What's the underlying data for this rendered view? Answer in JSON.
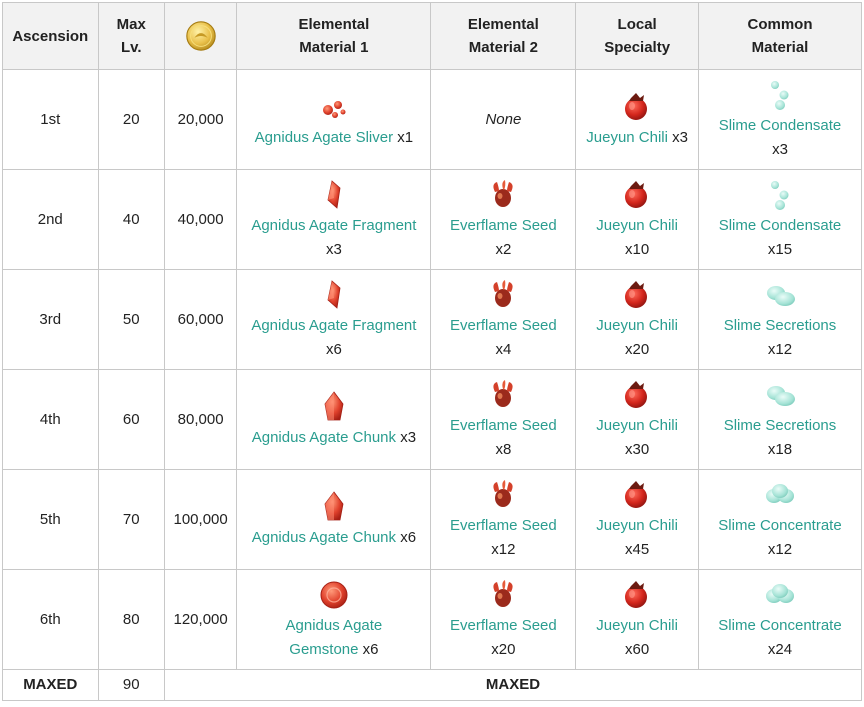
{
  "headers": {
    "ascension": "Ascension",
    "max_lv_1": "Max",
    "max_lv_2": "Lv.",
    "mora_icon": "mora-coin-icon",
    "elem1_1": "Elemental",
    "elem1_2": "Material 1",
    "elem2_1": "Elemental",
    "elem2_2": "Material 2",
    "local_1": "Local",
    "local_2": "Specialty",
    "common_1": "Common",
    "common_2": "Material"
  },
  "rows": [
    {
      "ascension": "1st",
      "max_lv": "20",
      "mora": "20,000",
      "elem1": {
        "icon": "agate-sliver-icon",
        "name": "Agnidus Agate Sliver",
        "qty": "x1",
        "inline": true
      },
      "elem2": {
        "none": "None"
      },
      "local": {
        "icon": "jueyun-chili-icon",
        "name": "Jueyun Chili",
        "qty": "x3",
        "inline": true
      },
      "common": {
        "icon": "slime-condensate-icon",
        "name": "Slime Condensate",
        "qty": "x3"
      }
    },
    {
      "ascension": "2nd",
      "max_lv": "40",
      "mora": "40,000",
      "elem1": {
        "icon": "agate-fragment-icon",
        "name": "Agnidus Agate Fragment",
        "qty": "x3"
      },
      "elem2": {
        "icon": "everflame-seed-icon",
        "name": "Everflame Seed",
        "qty": "x2"
      },
      "local": {
        "icon": "jueyun-chili-icon",
        "name": "Jueyun Chili",
        "qty": "x10"
      },
      "common": {
        "icon": "slime-condensate-icon",
        "name": "Slime Condensate",
        "qty": "x15"
      }
    },
    {
      "ascension": "3rd",
      "max_lv": "50",
      "mora": "60,000",
      "elem1": {
        "icon": "agate-fragment-icon",
        "name": "Agnidus Agate Fragment",
        "qty": "x6"
      },
      "elem2": {
        "icon": "everflame-seed-icon",
        "name": "Everflame Seed",
        "qty": "x4"
      },
      "local": {
        "icon": "jueyun-chili-icon",
        "name": "Jueyun Chili",
        "qty": "x20"
      },
      "common": {
        "icon": "slime-secretions-icon",
        "name": "Slime Secretions",
        "qty": "x12"
      }
    },
    {
      "ascension": "4th",
      "max_lv": "60",
      "mora": "80,000",
      "elem1": {
        "icon": "agate-chunk-icon",
        "name": "Agnidus Agate Chunk",
        "qty": "x3",
        "inline": true
      },
      "elem2": {
        "icon": "everflame-seed-icon",
        "name": "Everflame Seed",
        "qty": "x8"
      },
      "local": {
        "icon": "jueyun-chili-icon",
        "name": "Jueyun Chili",
        "qty": "x30"
      },
      "common": {
        "icon": "slime-secretions-icon",
        "name": "Slime Secretions",
        "qty": "x18"
      }
    },
    {
      "ascension": "5th",
      "max_lv": "70",
      "mora": "100,000",
      "elem1": {
        "icon": "agate-chunk-icon",
        "name": "Agnidus Agate Chunk",
        "qty": "x6",
        "inline": true
      },
      "elem2": {
        "icon": "everflame-seed-icon",
        "name": "Everflame Seed",
        "qty": "x12"
      },
      "local": {
        "icon": "jueyun-chili-icon",
        "name": "Jueyun Chili",
        "qty": "x45"
      },
      "common": {
        "icon": "slime-concentrate-icon",
        "name": "Slime Concentrate",
        "qty": "x12"
      }
    },
    {
      "ascension": "6th",
      "max_lv": "80",
      "mora": "120,000",
      "elem1": {
        "icon": "agate-gemstone-icon",
        "name_1": "Agnidus Agate",
        "name_2": "Gemstone",
        "qty": "x6"
      },
      "elem2": {
        "icon": "everflame-seed-icon",
        "name": "Everflame Seed",
        "qty": "x20"
      },
      "local": {
        "icon": "jueyun-chili-icon",
        "name": "Jueyun Chili",
        "qty": "x60"
      },
      "common": {
        "icon": "slime-concentrate-icon",
        "name": "Slime Concentrate",
        "qty": "x24"
      }
    }
  ],
  "footer": {
    "ascension": "MAXED",
    "max_lv": "90",
    "rest": "MAXED"
  },
  "colors": {
    "link": "#2a9d8f",
    "header_bg": "#f2f2f2",
    "border": "#c8c8c8"
  }
}
